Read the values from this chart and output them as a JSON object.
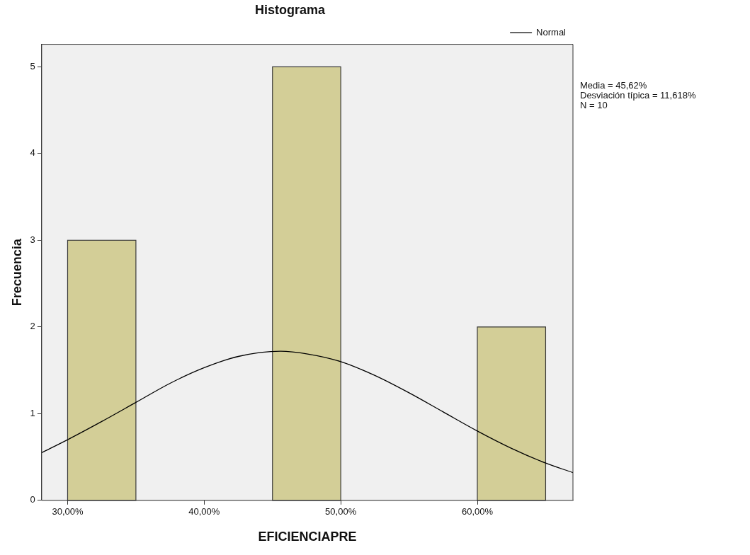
{
  "chart_data": {
    "type": "histogram",
    "title": "Histograma",
    "xlabel": "EFICIENCIAPRE",
    "ylabel": "Frecuencia",
    "bins": [
      30,
      35,
      40,
      45,
      50,
      55,
      60,
      65
    ],
    "values": [
      3,
      0,
      0,
      5,
      0,
      0,
      2
    ],
    "color": "#d3ce97",
    "xlim": [
      28.1,
      67
    ],
    "xticks": [
      {
        "value": 30,
        "label": "30,00%"
      },
      {
        "value": 40,
        "label": "40,00%"
      },
      {
        "value": 50,
        "label": "50,00%"
      },
      {
        "value": 60,
        "label": "60,00%"
      }
    ],
    "ylim": [
      0,
      5.26
    ],
    "yticks": [
      0,
      1,
      2,
      3,
      4,
      5
    ],
    "series": [
      {
        "name": "Normal",
        "type": "line",
        "color": "#000000",
        "x": [
          28.1,
          30,
          32.5,
          35,
          37.5,
          40,
          42.5,
          45.6,
          47.5,
          50,
          52.5,
          55,
          57.5,
          60,
          62.5,
          65,
          67
        ],
        "values": [
          0.55,
          0.7,
          0.91,
          1.13,
          1.35,
          1.53,
          1.66,
          1.72,
          1.69,
          1.6,
          1.44,
          1.24,
          1.02,
          0.8,
          0.6,
          0.43,
          0.32
        ]
      }
    ],
    "legend": "top right",
    "marker": "none",
    "annotations": [
      "Media = 45,62%",
      "Desviación típica = 11,618%",
      "N = 10"
    ]
  }
}
